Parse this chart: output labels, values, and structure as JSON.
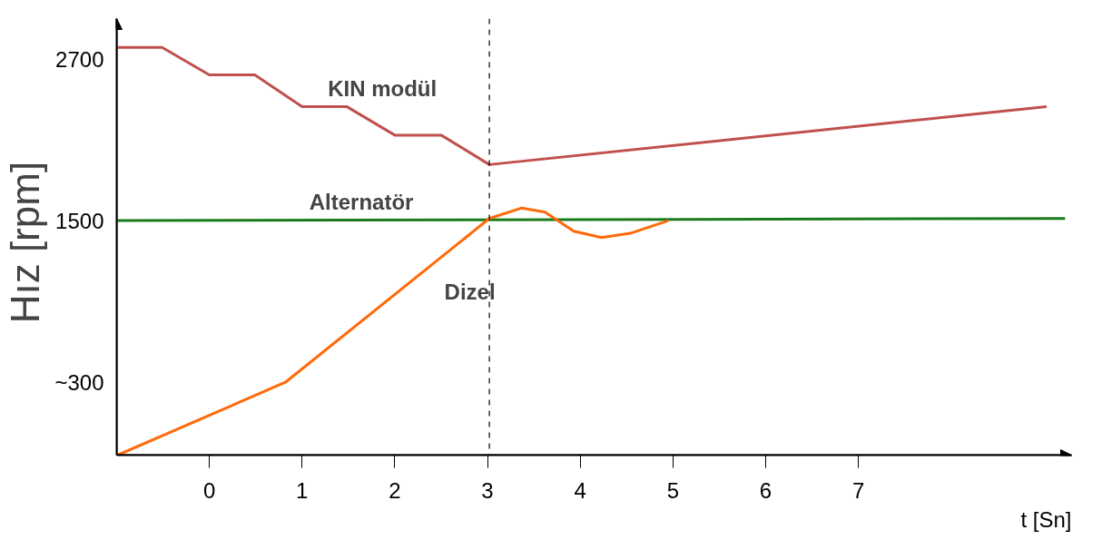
{
  "chart_data": {
    "type": "line",
    "xlabel": "t [Sn]",
    "ylabel": "Hız  [rpm]",
    "xlim": [
      -1.0,
      9.3
    ],
    "ylim": [
      -241,
      3000
    ],
    "xticks": [
      0,
      1,
      2,
      3,
      4,
      5,
      6,
      7
    ],
    "yticks": [
      {
        "value": 300,
        "label": "~300"
      },
      1500,
      2700
    ],
    "grid": false,
    "marker": "none",
    "line_style": "solid",
    "series": [
      {
        "color": "#c0504d",
        "x": [
          -0.99,
          -0.51,
          0.0,
          0.49,
          1.0,
          1.48,
          2.0,
          2.5,
          3.02,
          9.03
        ],
        "values": [
          2786,
          2786,
          2582,
          2582,
          2347,
          2347,
          2135,
          2135,
          1916,
          2347
        ]
      },
      {
        "color": "#1a7a1a",
        "x": [
          -0.99,
          9.23
        ],
        "values": [
          1500,
          1516
        ]
      },
      {
        "color": "#ff6a0a",
        "x": [
          -0.99,
          0.82,
          3.02,
          3.37,
          3.62,
          3.93,
          4.23,
          4.54,
          4.95
        ],
        "values": [
          -241,
          300,
          1516,
          1594,
          1563,
          1422,
          1375,
          1406,
          1500
        ]
      }
    ],
    "ref_lines": [
      {
        "axis": "x",
        "value": 3.02,
        "line_style": "dashed",
        "color": "#000000"
      }
    ],
    "annotations": [
      {
        "text": "KIN modül",
        "x": 1.2,
        "y": 2347
      },
      {
        "text": "Alternatör",
        "x": 1.0,
        "y": 1505
      },
      {
        "text": "Dizel",
        "x": 2.3,
        "y": 1118
      }
    ]
  }
}
